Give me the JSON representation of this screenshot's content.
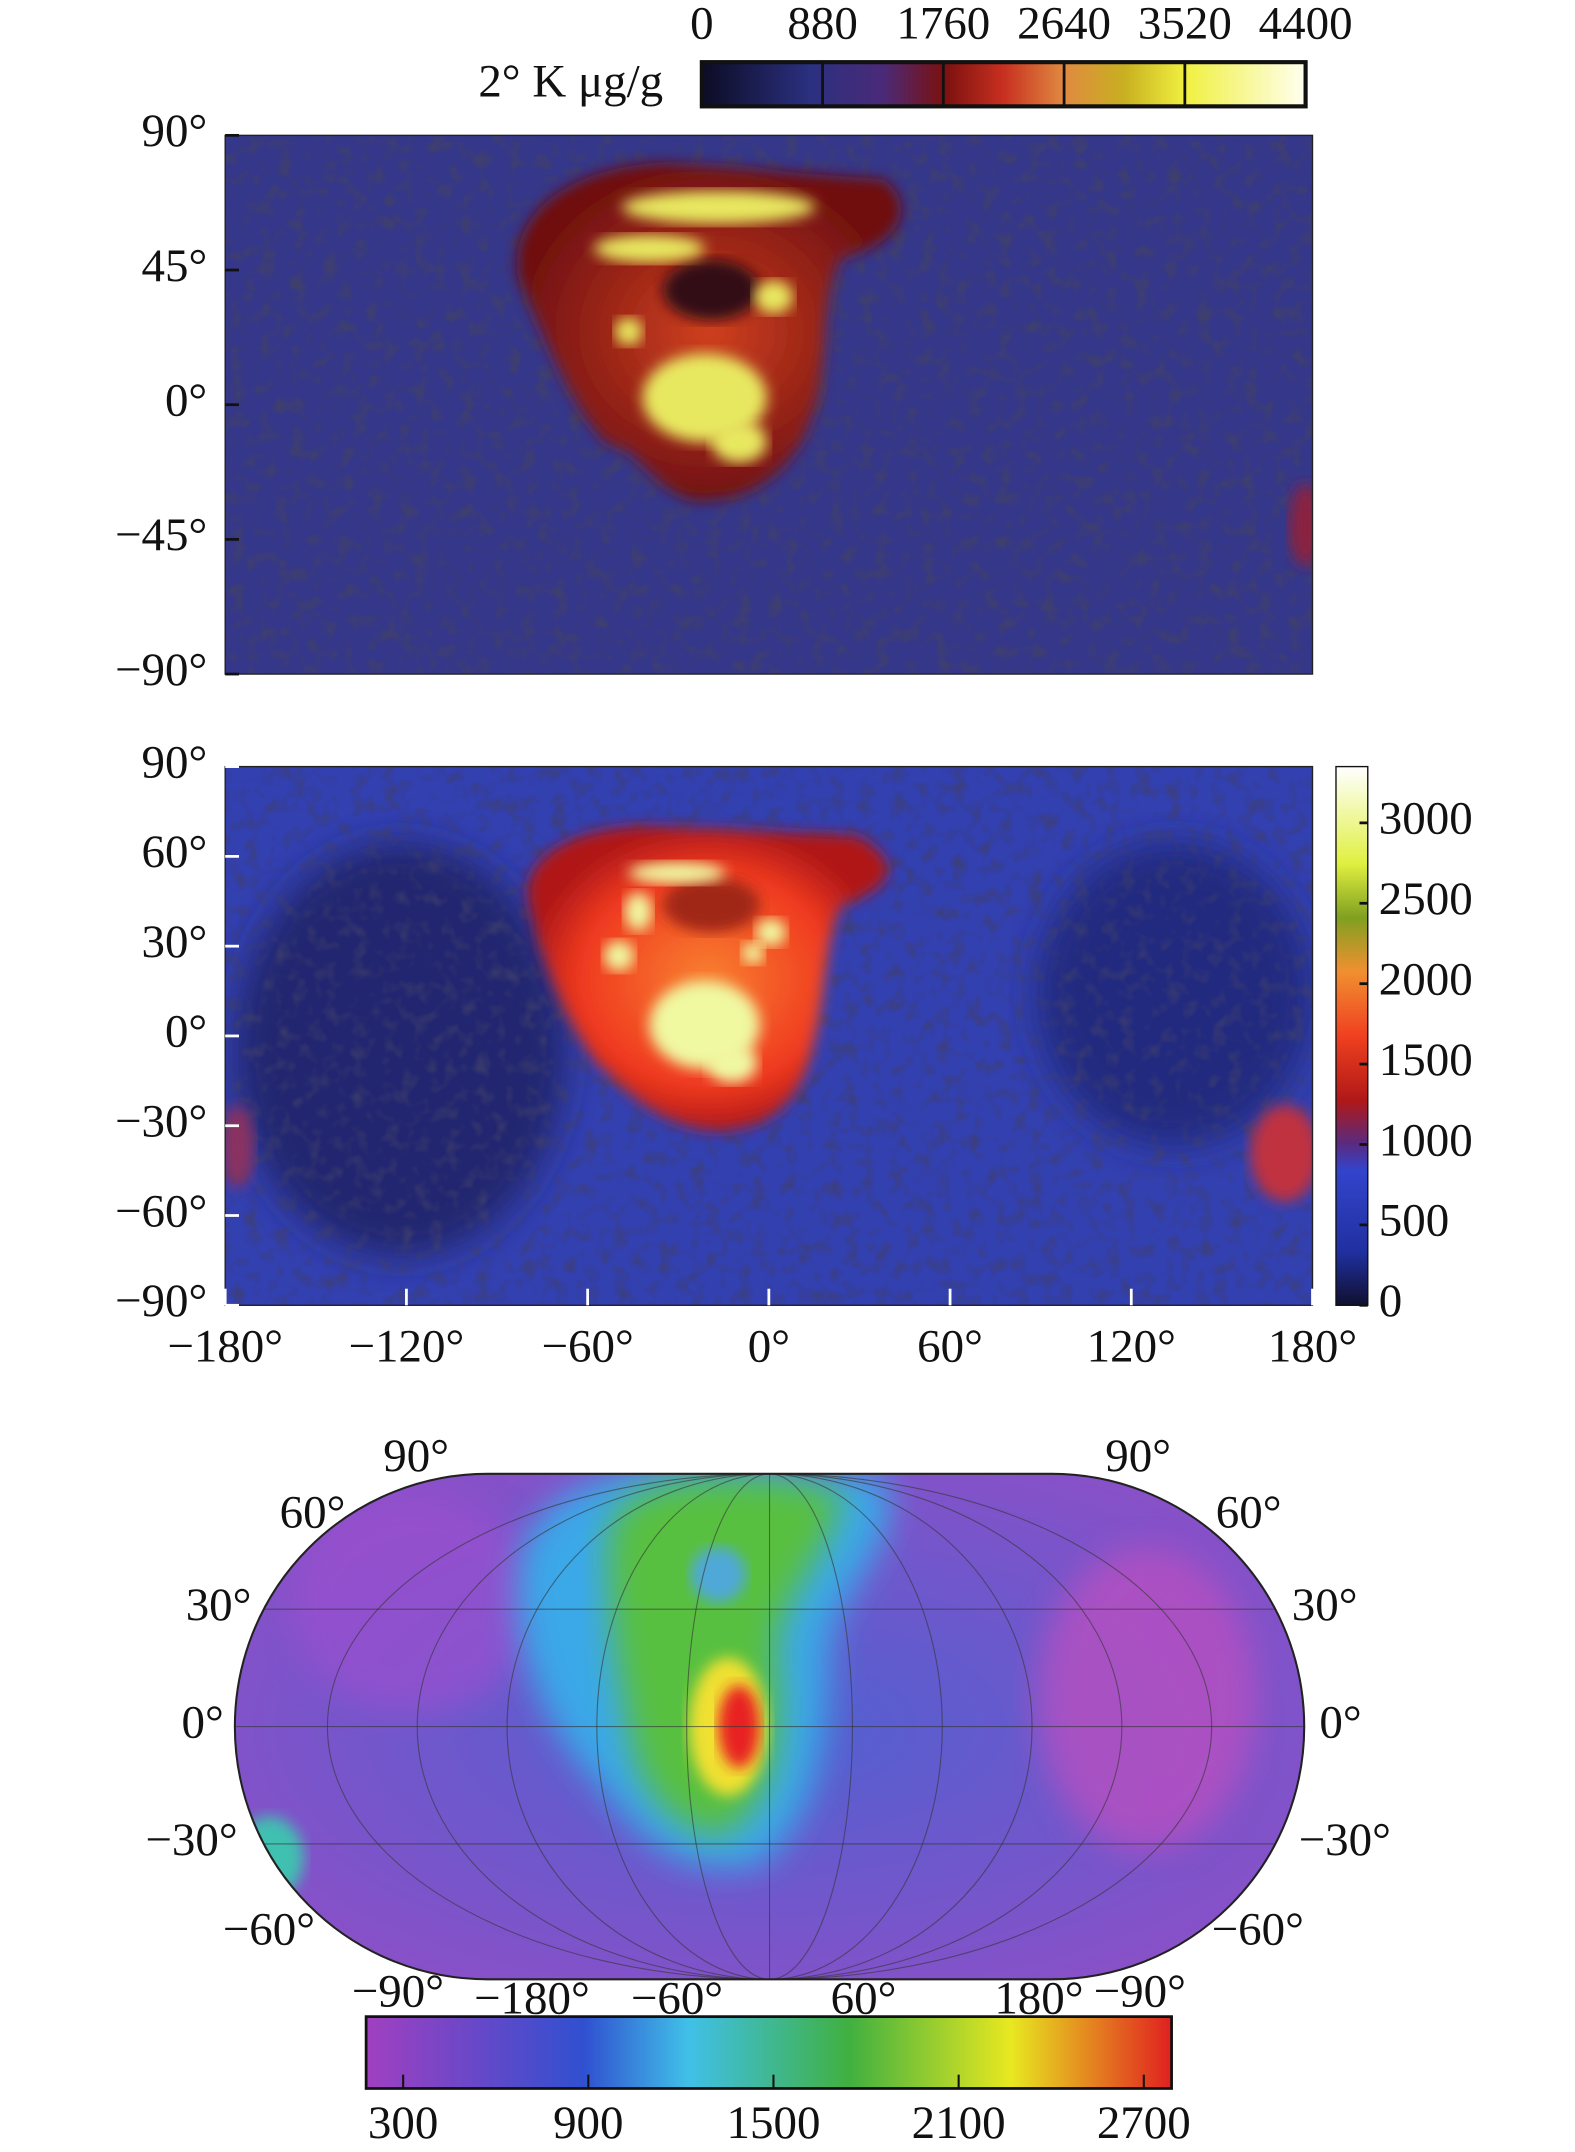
{
  "panels": [
    {
      "colorbar": {
        "label": "2° K μg/g",
        "lim": [
          0,
          4400
        ],
        "ticks": [
          0,
          880,
          1760,
          2640,
          3520,
          4400
        ]
      },
      "ylim": [
        -90,
        90
      ],
      "yticks": [
        {
          "value": 90,
          "label": "90°"
        },
        {
          "value": 45,
          "label": "45°"
        },
        {
          "value": 0,
          "label": "0°"
        },
        {
          "value": -45,
          "label": "−45°"
        },
        {
          "value": -90,
          "label": "−90°"
        }
      ]
    },
    {
      "colorbar": {
        "lim": [
          0,
          3350
        ],
        "ticks": [
          0,
          500,
          1000,
          1500,
          2000,
          2500,
          3000
        ]
      },
      "ylim": [
        -90,
        90
      ],
      "yticks": [
        {
          "value": 90,
          "label": "90°"
        },
        {
          "value": 60,
          "label": "60°"
        },
        {
          "value": 30,
          "label": "30°"
        },
        {
          "value": 0,
          "label": "0°"
        },
        {
          "value": -30,
          "label": "−30°"
        },
        {
          "value": -60,
          "label": "−60°"
        },
        {
          "value": -90,
          "label": "−90°"
        }
      ],
      "xlim": [
        -180,
        180
      ],
      "xticks": [
        {
          "value": -180,
          "label": "−180°"
        },
        {
          "value": -120,
          "label": "−120°"
        },
        {
          "value": -60,
          "label": "−60°"
        },
        {
          "value": 0,
          "label": "0°"
        },
        {
          "value": 60,
          "label": "60°"
        },
        {
          "value": 120,
          "label": "120°"
        },
        {
          "value": 180,
          "label": "180°"
        }
      ]
    },
    {
      "colorbar": {
        "lim": [
          180,
          2790
        ],
        "ticks": [
          300,
          900,
          1500,
          2100,
          2700
        ]
      },
      "left_labels": [
        "90°",
        "60°",
        "30°",
        "0°",
        "−30°",
        "−60°"
      ],
      "right_labels": [
        "90°",
        "60°",
        "30°",
        "0°",
        "−30°",
        "−60°"
      ],
      "bottom_labels": [
        "−90°",
        "−180°",
        "−60°",
        "60°",
        "180°",
        "−90°"
      ]
    }
  ]
}
